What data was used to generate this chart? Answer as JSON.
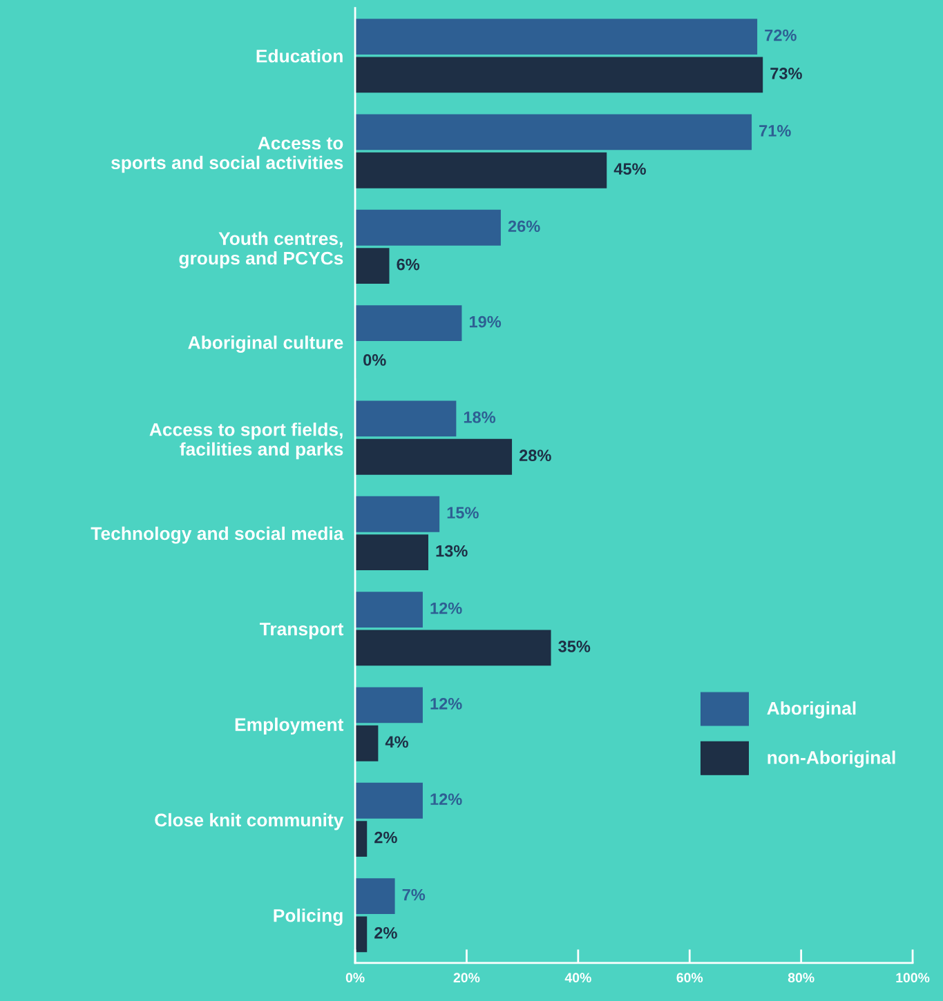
{
  "chart_data": {
    "type": "bar",
    "orientation": "horizontal",
    "categories": [
      "Education",
      "Access to\nsports and social activities",
      "Youth centres,\ngroups and PCYCs",
      "Aboriginal culture",
      "Access to sport fields,\nfacilities and parks",
      "Technology and social media",
      "Transport",
      "Employment",
      "Close knit community",
      "Policing"
    ],
    "series": [
      {
        "name": "Aboriginal",
        "color": "#2e5f93",
        "values": [
          72,
          71,
          26,
          19,
          18,
          15,
          12,
          12,
          12,
          7
        ],
        "value_labels": [
          "72%",
          "71%",
          "26%",
          "19%",
          "18%",
          "15%",
          "12%",
          "12%",
          "12%",
          "7%"
        ]
      },
      {
        "name": "non-Aboriginal",
        "color": "#1e2f45",
        "values": [
          73,
          45,
          6,
          0,
          28,
          13,
          35,
          4,
          2,
          2
        ],
        "value_labels": [
          "73%",
          "45%",
          "6%",
          "0%",
          "28%",
          "13%",
          "35%",
          "4%",
          "2%",
          "2%"
        ]
      }
    ],
    "xlim": [
      0,
      100
    ],
    "xticks": [
      {
        "value": 0,
        "label": "0%"
      },
      {
        "value": 20,
        "label": "20%"
      },
      {
        "value": 40,
        "label": "40%"
      },
      {
        "value": 60,
        "label": "60%"
      },
      {
        "value": 80,
        "label": "80%"
      },
      {
        "value": 100,
        "label": "100%"
      }
    ],
    "grid": false,
    "legend": "bottom right"
  }
}
